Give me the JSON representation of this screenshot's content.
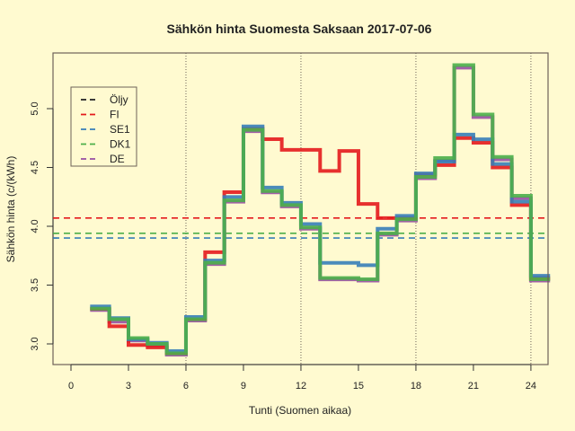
{
  "chart_data": {
    "type": "line",
    "subtype": "step",
    "title": "Sähkön hinta Suomesta Saksaan 2017-07-06",
    "xlabel": "Tunti (Suomen aikaa)",
    "ylabel": "Sähkön hinta (c/(kWh)",
    "x_ticks": [
      0,
      3,
      6,
      9,
      12,
      15,
      18,
      21,
      24
    ],
    "y_ticks": [
      "3.0",
      "3.5",
      "4.0",
      "4.5",
      "5.0"
    ],
    "xlim": [
      -0.9,
      25.0
    ],
    "ylim": [
      2.83,
      5.48
    ],
    "vertical_gridlines": [
      6,
      12,
      18,
      24
    ],
    "grid": "dotted vertical at 6-hour intervals",
    "legend_position": "top-left inside",
    "legend": [
      {
        "name": "Öljy",
        "color": "#222222"
      },
      {
        "name": "FI",
        "color": "#e41a1c"
      },
      {
        "name": "SE1",
        "color": "#377eb8"
      },
      {
        "name": "DK1",
        "color": "#4daf4a"
      },
      {
        "name": "DE",
        "color": "#984ea3"
      }
    ],
    "hours": [
      1,
      2,
      3,
      4,
      5,
      6,
      7,
      8,
      9,
      10,
      11,
      12,
      13,
      14,
      15,
      16,
      17,
      18,
      19,
      20,
      21,
      22,
      23,
      24
    ],
    "series": [
      {
        "name": "DE",
        "color": "#984ea3",
        "values": [
          3.3,
          3.2,
          3.04,
          3.0,
          2.92,
          3.21,
          3.69,
          4.22,
          4.82,
          4.3,
          4.18,
          3.99,
          3.56,
          3.56,
          3.55,
          3.94,
          4.06,
          4.42,
          4.57,
          5.36,
          4.94,
          4.58,
          4.25,
          3.55
        ]
      },
      {
        "name": "FI",
        "color": "#e41a1c",
        "values": [
          3.3,
          3.15,
          2.99,
          2.97,
          2.92,
          3.21,
          3.78,
          4.29,
          4.83,
          4.74,
          4.65,
          4.65,
          4.47,
          4.64,
          4.19,
          4.07,
          4.07,
          4.44,
          4.52,
          4.75,
          4.71,
          4.5,
          4.18,
          3.56
        ]
      },
      {
        "name": "SE1",
        "color": "#377eb8",
        "values": [
          3.31,
          3.21,
          3.03,
          3.0,
          2.93,
          3.22,
          3.7,
          4.24,
          4.84,
          4.32,
          4.19,
          4.01,
          3.68,
          3.68,
          3.66,
          3.97,
          4.08,
          4.44,
          4.54,
          4.77,
          4.73,
          4.52,
          4.2,
          3.57
        ]
      },
      {
        "name": "DK1",
        "color": "#4daf4a",
        "values": [
          3.3,
          3.21,
          3.05,
          3.0,
          2.92,
          3.21,
          3.69,
          4.22,
          4.82,
          4.3,
          4.18,
          3.99,
          3.56,
          3.56,
          3.55,
          3.94,
          4.06,
          4.42,
          4.58,
          5.37,
          4.95,
          4.59,
          4.26,
          3.55
        ]
      }
    ],
    "averages": [
      {
        "name": "FI",
        "color": "#e41a1c",
        "value": 4.07
      },
      {
        "name": "DK1",
        "color": "#4daf4a",
        "value": 3.94
      },
      {
        "name": "SE1",
        "color": "#377eb8",
        "value": 3.9
      }
    ]
  }
}
